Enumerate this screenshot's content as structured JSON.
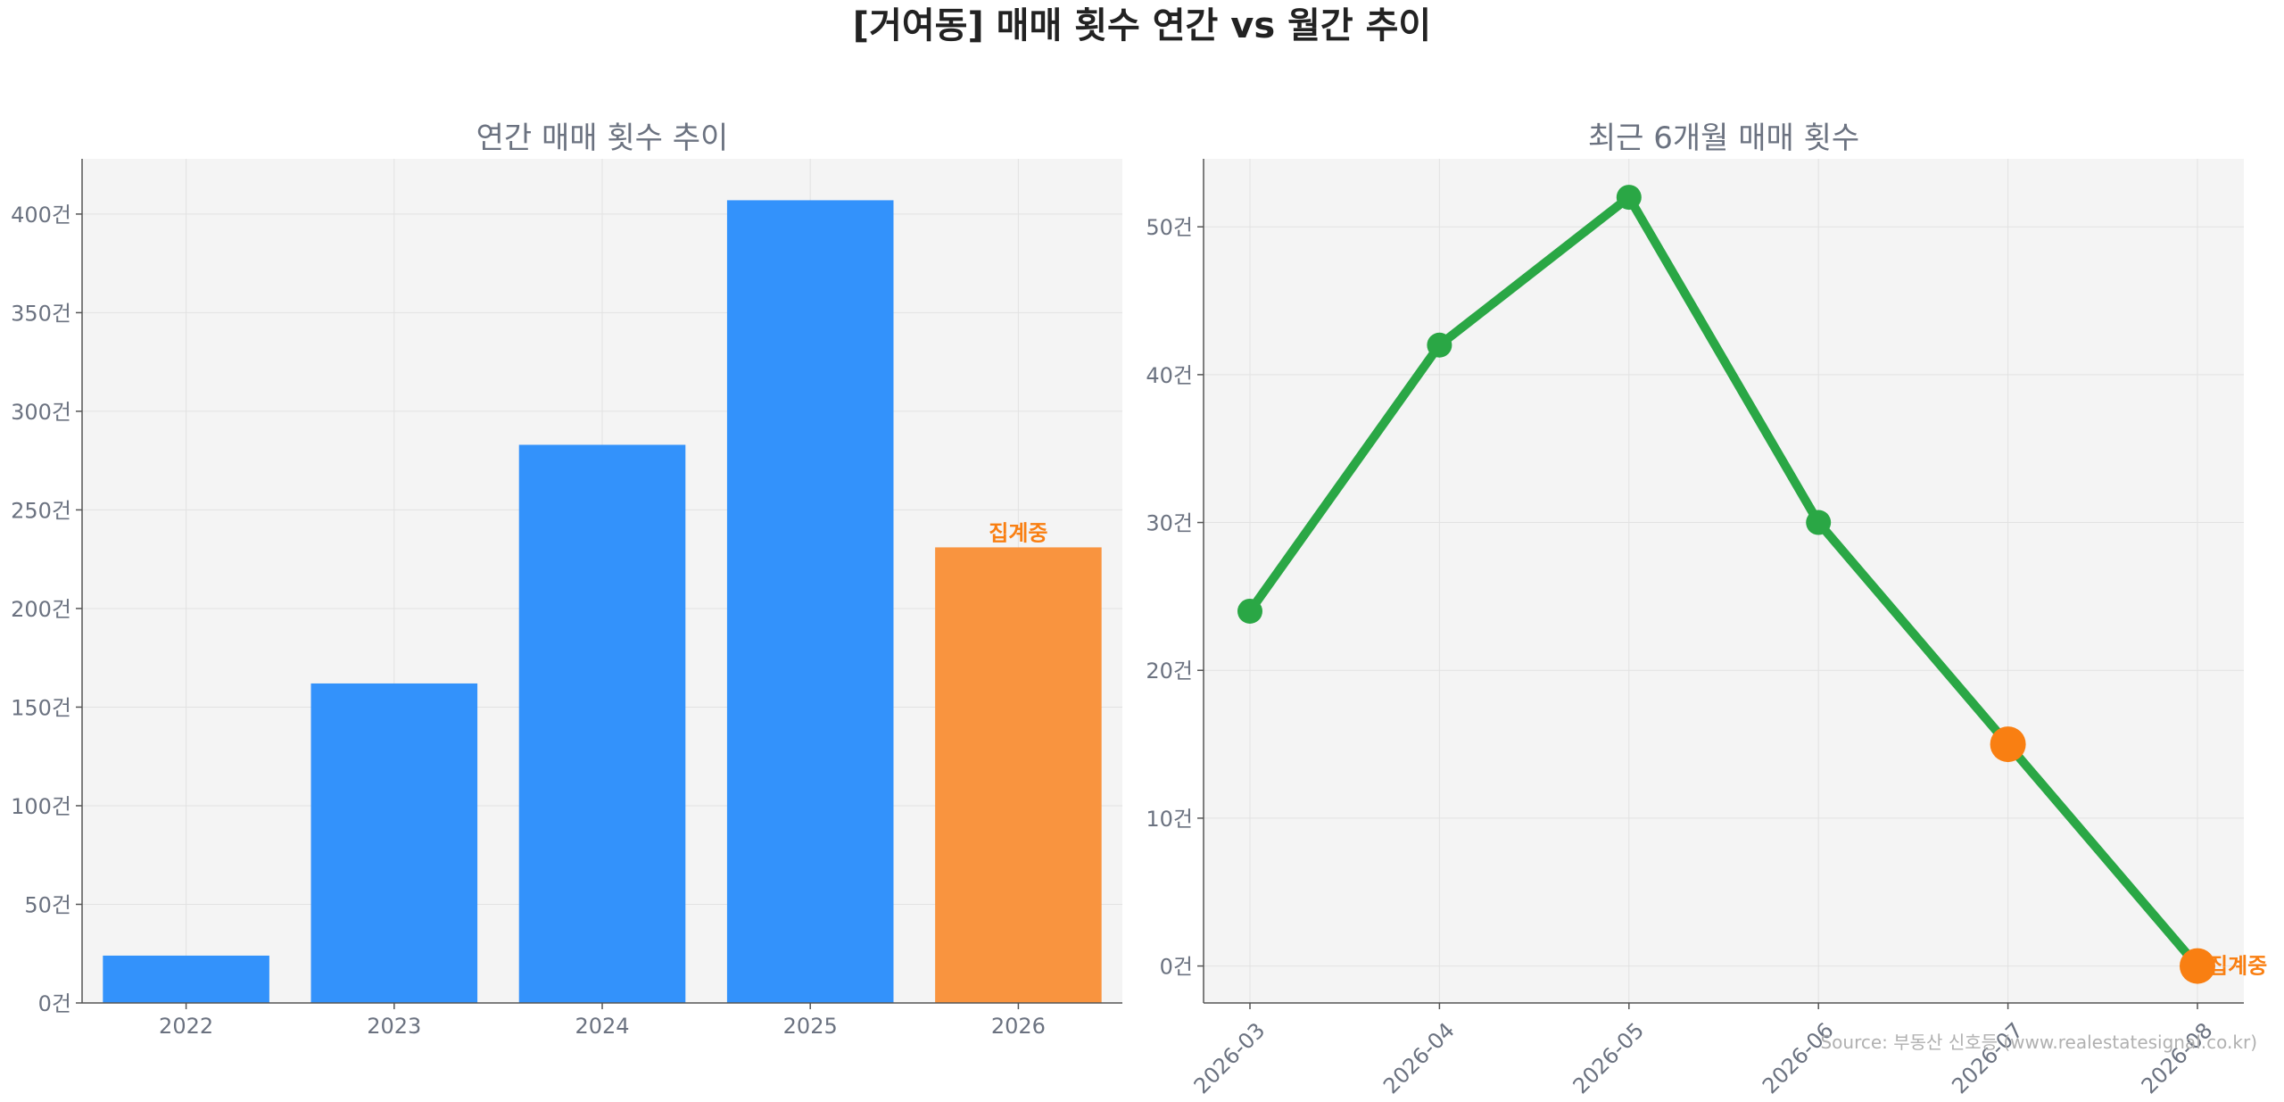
{
  "suptitle": "[거여동] 매매 횟수 연간 vs 월간 추이",
  "source": "Source: 부동산 신호등 (www.realestatesignal.co.kr)",
  "colors": {
    "bar": "#3392fb",
    "highlight": "#f9943f",
    "line": "#2aa745",
    "marker_orange": "#f97f12",
    "panel_bg": "#f4f4f4",
    "grid": "#e2e2e2",
    "tick_text": "#6b7280"
  },
  "chart_data": [
    {
      "type": "bar",
      "title": "연간 매매 횟수 추이",
      "categories": [
        "2022",
        "2023",
        "2024",
        "2025",
        "2026"
      ],
      "values": [
        24,
        162,
        283,
        407,
        231
      ],
      "highlight_index": 4,
      "highlight_label": "집계중",
      "ylim": [
        0,
        428
      ],
      "yticks": [
        0,
        50,
        100,
        150,
        200,
        250,
        300,
        350,
        400
      ],
      "ytick_suffix": "건",
      "grid": true
    },
    {
      "type": "line",
      "title": "최근 6개월 매매 횟수",
      "categories": [
        "2026-03",
        "2026-04",
        "2026-05",
        "2026-06",
        "2026-07",
        "2026-08"
      ],
      "values": [
        24,
        42,
        52,
        30,
        15,
        0
      ],
      "orange_indices": [
        4,
        5
      ],
      "end_label": "집계중",
      "ylim": [
        -2.5,
        54.6
      ],
      "yticks": [
        0,
        10,
        20,
        30,
        40,
        50
      ],
      "ytick_suffix": "건",
      "grid": true
    }
  ]
}
